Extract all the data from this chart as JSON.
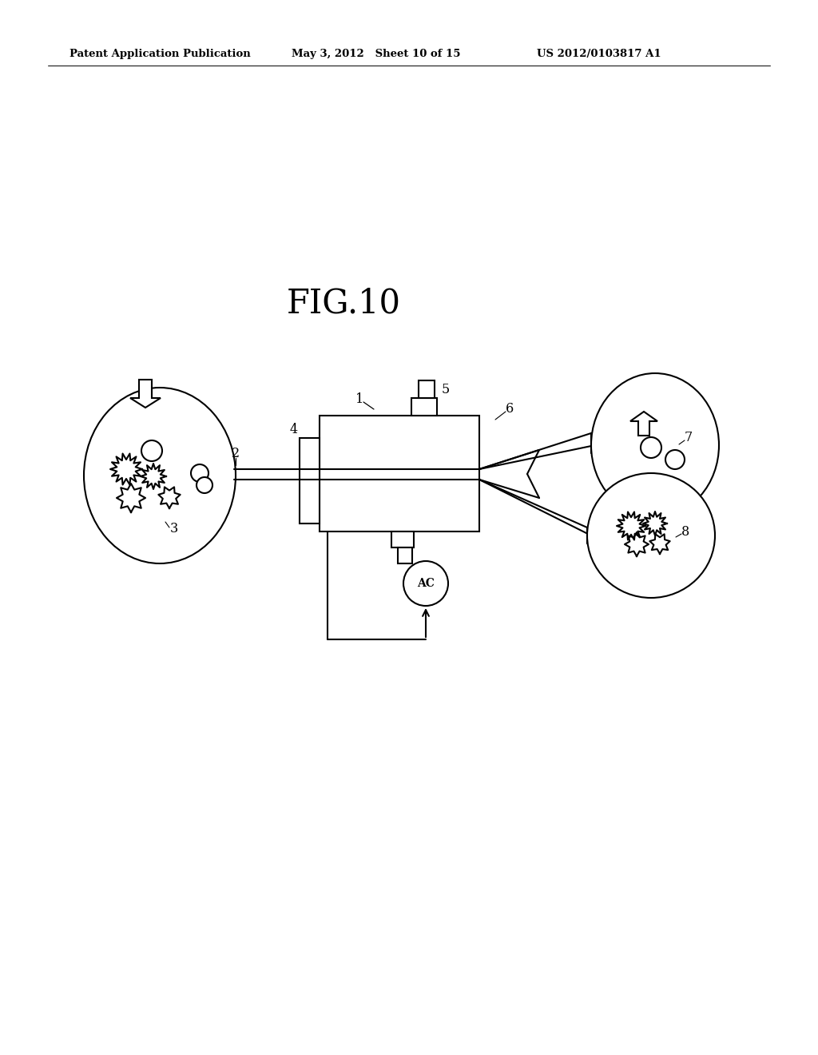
{
  "header_left": "Patent Application Publication",
  "header_mid": "May 3, 2012   Sheet 10 of 15",
  "header_right": "US 2012/0103817 A1",
  "title": "FIG.10",
  "bg": "#ffffff",
  "lc": "#000000",
  "lw": 1.5
}
